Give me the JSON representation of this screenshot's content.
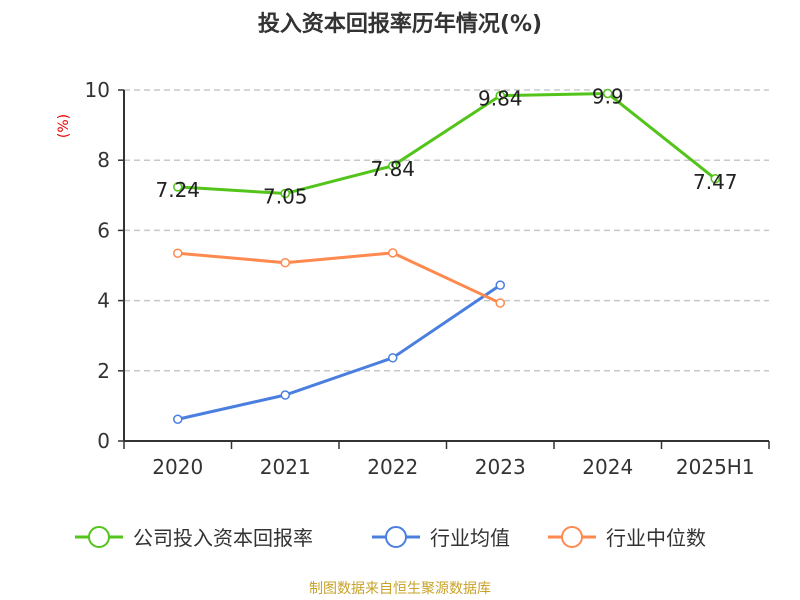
{
  "chart_data": {
    "type": "line",
    "title": "投入资本回报率历年情况(%)",
    "ylabel": "(%)",
    "xlabel": "",
    "categories": [
      "2020",
      "2021",
      "2022",
      "2023",
      "2024",
      "2025H1"
    ],
    "ylim": [
      0,
      10
    ],
    "yticks": [
      0,
      2,
      4,
      6,
      8,
      10
    ],
    "grid": true,
    "legend_position": "bottom",
    "series": [
      {
        "name": "公司投入资本回报率",
        "color": "#52c41a",
        "values": [
          7.24,
          7.05,
          7.84,
          9.84,
          9.9,
          7.47
        ],
        "labels": [
          "7.24",
          "7.05",
          "7.84",
          "9.84",
          "9.9",
          "7.47"
        ]
      },
      {
        "name": "行业均值",
        "color": "#4a7fe0",
        "values": [
          0.62,
          1.31,
          2.37,
          4.44,
          null,
          null
        ]
      },
      {
        "name": "行业中位数",
        "color": "#ff8a50",
        "values": [
          5.35,
          5.08,
          5.36,
          3.93,
          null,
          null
        ]
      }
    ]
  },
  "source": "制图数据来自恒生聚源数据库"
}
